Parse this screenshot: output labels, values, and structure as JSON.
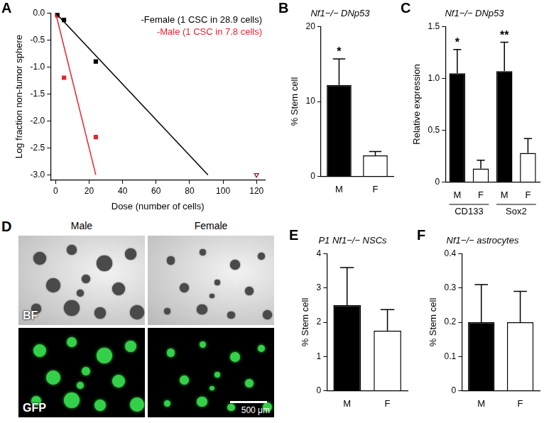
{
  "chart_data": [
    {
      "panel": "A",
      "type": "scatter",
      "xlabel": "Dose (number of cells)",
      "ylabel": "Log fraction non-tumor sphere",
      "xlim": [
        -3,
        125
      ],
      "ylim": [
        -3.1,
        0
      ],
      "xticks": [
        0,
        20,
        40,
        60,
        80,
        100,
        120
      ],
      "yticks": [
        {
          "value": -3,
          "label": "-3.0"
        },
        -2.5,
        {
          "value": -2,
          "label": "-2.0"
        },
        -1.5,
        {
          "value": -1,
          "label": "-1.0"
        },
        -0.5,
        {
          "value": 0,
          "label": "0.0"
        }
      ],
      "grid": false,
      "legend": "upper right",
      "series": [
        {
          "name": "-Female (1 CSC in 28.9 cells)",
          "type": "line",
          "color": "#000000",
          "x": [
            0,
            91
          ],
          "values": [
            0,
            -3
          ]
        },
        {
          "name": "-Male (1 CSC in 7.8 cells)",
          "type": "line",
          "color": "#e8242c",
          "x": [
            0,
            24
          ],
          "values": [
            0,
            -3
          ]
        },
        {
          "type": "scatter",
          "marker": "square",
          "color": "#000000",
          "x": [
            1,
            5,
            24
          ],
          "values": [
            -0.02,
            -0.13,
            -0.9
          ]
        },
        {
          "type": "scatter",
          "marker": "square",
          "color": "#e8242c",
          "x": [
            1,
            5,
            24
          ],
          "values": [
            -0.05,
            -1.2,
            -2.3
          ]
        },
        {
          "type": "scatter",
          "marker": "open_triangle_down",
          "color": "#8b1a1a",
          "x": [
            120
          ],
          "values": [
            -3
          ]
        }
      ]
    },
    {
      "panel": "B",
      "type": "bar",
      "title": "Nf1−/− DNp53",
      "ylabel": "% Stem cell",
      "categories": [
        "M",
        "F"
      ],
      "values": [
        12.2,
        2.8
      ],
      "errors": [
        3.5,
        0.5
      ],
      "significance": [
        "*",
        null
      ],
      "colors": [
        "#000000",
        "#ffffff"
      ],
      "ylim": [
        0,
        20
      ],
      "yticks": [
        0,
        10,
        20
      ],
      "grid": false
    },
    {
      "panel": "C",
      "type": "bar",
      "title": "Nf1−/− DNp53",
      "ylabel": "Relative expression",
      "categories": [
        "M",
        "F",
        "M",
        "F"
      ],
      "group": [
        "CD133",
        "CD133",
        "Sox2",
        "Sox2"
      ],
      "values": [
        1.05,
        0.13,
        1.07,
        0.28
      ],
      "errors": [
        0.23,
        0.08,
        0.28,
        0.14
      ],
      "significance": [
        "*",
        null,
        "**",
        null
      ],
      "colors": [
        "#000000",
        "#ffffff",
        "#000000",
        "#ffffff"
      ],
      "ylim": [
        0,
        1.5
      ],
      "yticks": [
        0,
        0.5,
        {
          "value": 1,
          "label": "1.0"
        },
        1.5
      ],
      "grid": false
    },
    {
      "panel": "D",
      "type": "image",
      "columns": [
        "Male",
        "Female"
      ],
      "rows": [
        "BF",
        "GFP"
      ],
      "scale_bar": "500 μm"
    },
    {
      "panel": "E",
      "type": "bar",
      "title": "P1 Nf1−/− NSCs",
      "ylabel": "% Stem cell",
      "categories": [
        "M",
        "F"
      ],
      "values": [
        2.5,
        1.75
      ],
      "errors": [
        1.1,
        0.62
      ],
      "significance": [
        null,
        null
      ],
      "colors": [
        "#000000",
        "#ffffff"
      ],
      "ylim": [
        0,
        4
      ],
      "yticks": [
        0,
        1,
        2,
        3,
        4
      ],
      "grid": false
    },
    {
      "panel": "F",
      "type": "bar",
      "title": "Nf1−/− astrocytes",
      "ylabel": "% Stem cell",
      "categories": [
        "M",
        "F"
      ],
      "values": [
        0.2,
        0.2
      ],
      "errors": [
        0.11,
        0.09
      ],
      "significance": [
        null,
        null
      ],
      "colors": [
        "#000000",
        "#ffffff"
      ],
      "ylim": [
        0,
        0.4
      ],
      "yticks": [
        0,
        0.1,
        0.2,
        0.3,
        0.4
      ],
      "grid": false
    }
  ]
}
